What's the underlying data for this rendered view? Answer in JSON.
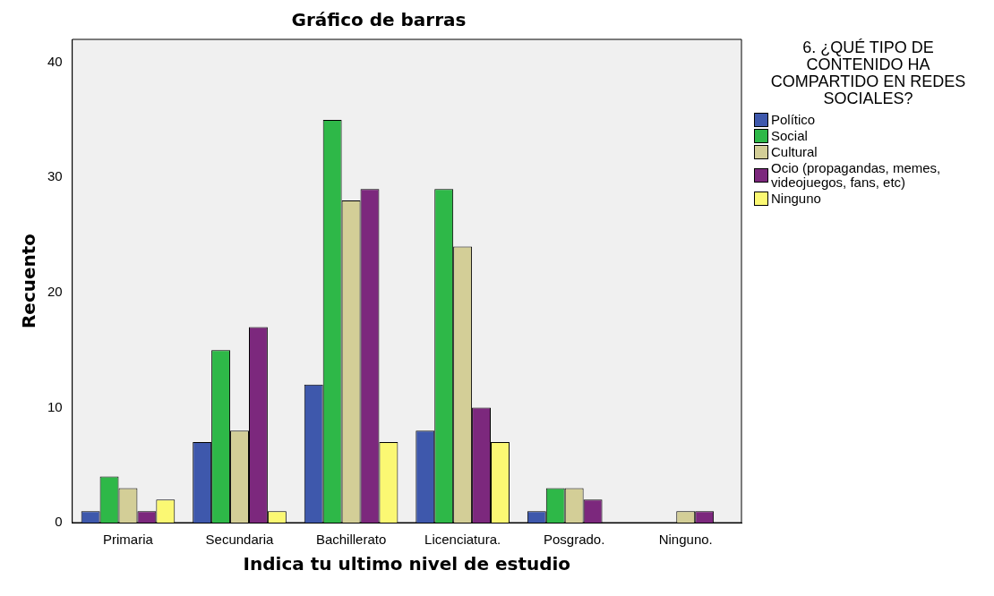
{
  "chart_data": {
    "type": "bar",
    "title": "Gráfico de barras",
    "xlabel": "Indica tu ultimo nivel de estudio",
    "ylabel": "Recuento",
    "legend_title": "6. ¿QUÉ TIPO DE CONTENIDO HA COMPARTIDO EN REDES SOCIALES?",
    "legend": "right",
    "categories": [
      "Primaria",
      "Secundaria",
      "Bachillerato",
      "Licenciatura.",
      "Posgrado.",
      "Ninguno."
    ],
    "series": [
      {
        "name": "Político",
        "color": "#3e58ac",
        "values": [
          1,
          7,
          12,
          8,
          1,
          0
        ]
      },
      {
        "name": "Social",
        "color": "#2eb848",
        "values": [
          4,
          15,
          35,
          29,
          3,
          0
        ]
      },
      {
        "name": "Cultural",
        "color": "#d3ce97",
        "values": [
          3,
          8,
          28,
          24,
          3,
          1
        ]
      },
      {
        "name": "Ocio (propagandas, memes, videojuegos, fans, etc)",
        "color": "#7c287d",
        "values": [
          1,
          17,
          29,
          10,
          2,
          1
        ]
      },
      {
        "name": "Ninguno",
        "color": "#fbf873",
        "values": [
          2,
          1,
          7,
          7,
          0,
          0
        ]
      }
    ],
    "ylim": [
      0,
      42
    ],
    "yticks": [
      0,
      10,
      20,
      30,
      40
    ],
    "grid": false
  }
}
